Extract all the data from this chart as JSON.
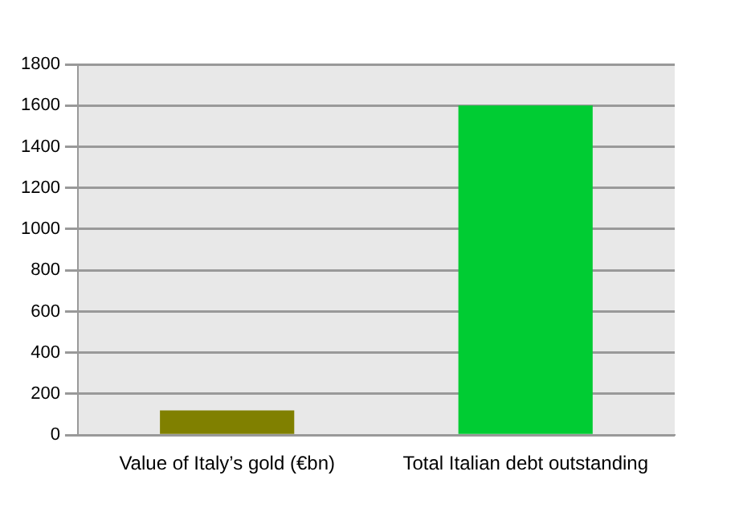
{
  "chart_data": {
    "type": "bar",
    "categories": [
      "Value of Italy’s gold (€bn)",
      "Total Italian debt outstanding"
    ],
    "values": [
      120,
      1600
    ],
    "colors": [
      "#808000",
      "#00cc33"
    ],
    "ylim": [
      0,
      1800
    ],
    "yticks": [
      0,
      200,
      400,
      600,
      800,
      1000,
      1200,
      1400,
      1600,
      1800
    ],
    "grid": "y",
    "legend": false
  }
}
